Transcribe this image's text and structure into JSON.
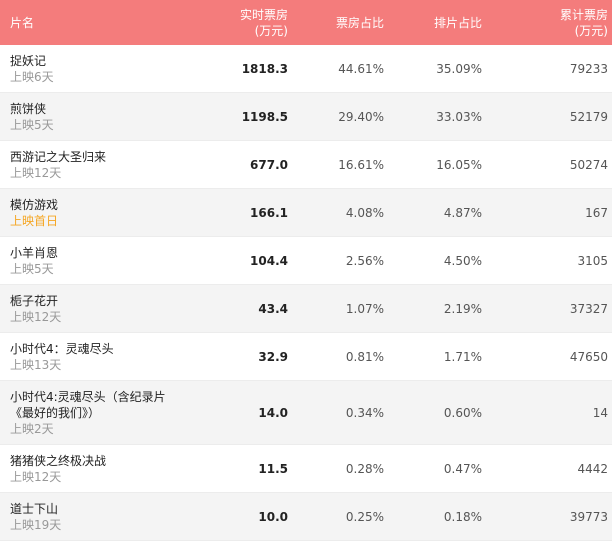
{
  "header": {
    "col_name": "片名",
    "col_realtime": [
      "实时票房",
      "(万元)"
    ],
    "col_boxshare": "票房占比",
    "col_screenshare": "排片占比",
    "col_total": [
      "累计票房",
      "(万元)"
    ]
  },
  "rows": [
    {
      "name": [
        "捉妖记"
      ],
      "days": "上映6天",
      "realtime": "1818.3",
      "box_share": "44.61%",
      "screen_share": "35.09%",
      "total": "79233",
      "today": false
    },
    {
      "name": [
        "煎饼侠"
      ],
      "days": "上映5天",
      "realtime": "1198.5",
      "box_share": "29.40%",
      "screen_share": "33.03%",
      "total": "52179",
      "today": false
    },
    {
      "name": [
        "西游记之大圣归来"
      ],
      "days": "上映12天",
      "realtime": "677.0",
      "box_share": "16.61%",
      "screen_share": "16.05%",
      "total": "50274",
      "today": false
    },
    {
      "name": [
        "模仿游戏"
      ],
      "days": "上映首日",
      "realtime": "166.1",
      "box_share": "4.08%",
      "screen_share": "4.87%",
      "total": "167",
      "today": true
    },
    {
      "name": [
        "小羊肖恩"
      ],
      "days": "上映5天",
      "realtime": "104.4",
      "box_share": "2.56%",
      "screen_share": "4.50%",
      "total": "3105",
      "today": false
    },
    {
      "name": [
        "栀子花开"
      ],
      "days": "上映12天",
      "realtime": "43.4",
      "box_share": "1.07%",
      "screen_share": "2.19%",
      "total": "37327",
      "today": false
    },
    {
      "name": [
        "小时代4：灵魂尽头"
      ],
      "days": "上映13天",
      "realtime": "32.9",
      "box_share": "0.81%",
      "screen_share": "1.71%",
      "total": "47650",
      "today": false
    },
    {
      "name": [
        "小时代4:灵魂尽头（含纪录片",
        "《最好的我们》）"
      ],
      "days": "上映2天",
      "realtime": "14.0",
      "box_share": "0.34%",
      "screen_share": "0.60%",
      "total": "14",
      "today": false
    },
    {
      "name": [
        "猪猪侠之终极决战"
      ],
      "days": "上映12天",
      "realtime": "11.5",
      "box_share": "0.28%",
      "screen_share": "0.47%",
      "total": "4442",
      "today": false
    },
    {
      "name": [
        "道士下山"
      ],
      "days": "上映19天",
      "realtime": "10.0",
      "box_share": "0.25%",
      "screen_share": "0.18%",
      "total": "39773",
      "today": false
    }
  ]
}
